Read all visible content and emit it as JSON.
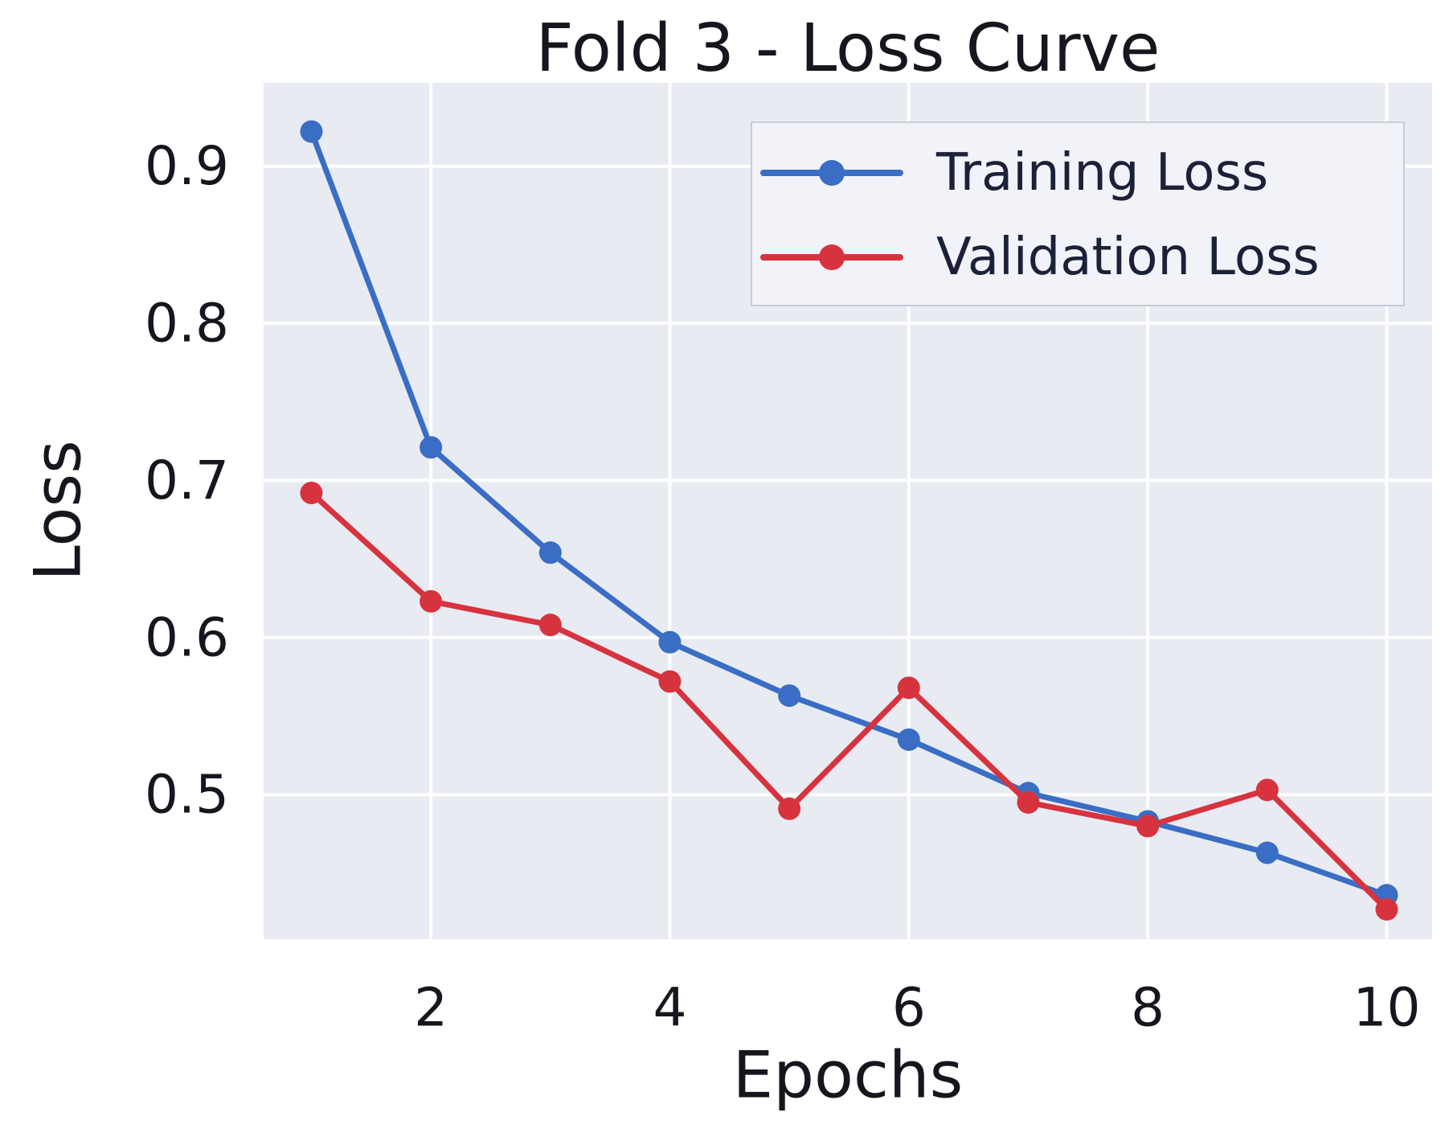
{
  "title": "Fold 3 - Loss Curve",
  "axes": {
    "xlabel": "Epochs",
    "ylabel": "Loss"
  },
  "legend": {
    "items": [
      {
        "label": "Training Loss"
      },
      {
        "label": "Validation Loss"
      }
    ]
  },
  "colors": {
    "training": "#3a6dc4",
    "validation": "#d7333f",
    "plot_background": "#e8ebf2",
    "grid": "#ffffff",
    "text": "#15161e",
    "legend_background": "#f2f3f8",
    "legend_border": "#c9ccd4"
  },
  "chart_data": {
    "type": "line",
    "x": [
      1,
      2,
      3,
      4,
      5,
      6,
      7,
      8,
      9,
      10
    ],
    "series": [
      {
        "name": "Training Loss",
        "color": "#3a6dc4",
        "values": [
          0.922,
          0.721,
          0.654,
          0.597,
          0.563,
          0.535,
          0.501,
          0.483,
          0.463,
          0.436
        ]
      },
      {
        "name": "Validation Loss",
        "color": "#d7333f",
        "values": [
          0.692,
          0.623,
          0.608,
          0.572,
          0.491,
          0.568,
          0.495,
          0.48,
          0.503,
          0.427
        ]
      }
    ],
    "title": "Fold 3 - Loss Curve",
    "xlabel": "Epochs",
    "ylabel": "Loss",
    "x_ticks": [
      2,
      4,
      6,
      8,
      10
    ],
    "y_ticks": [
      0.5,
      0.6,
      0.7,
      0.8,
      0.9
    ],
    "xlim": [
      0.6,
      10.38
    ],
    "ylim": [
      0.408,
      0.953
    ],
    "grid": true,
    "legend_position": "upper right"
  }
}
